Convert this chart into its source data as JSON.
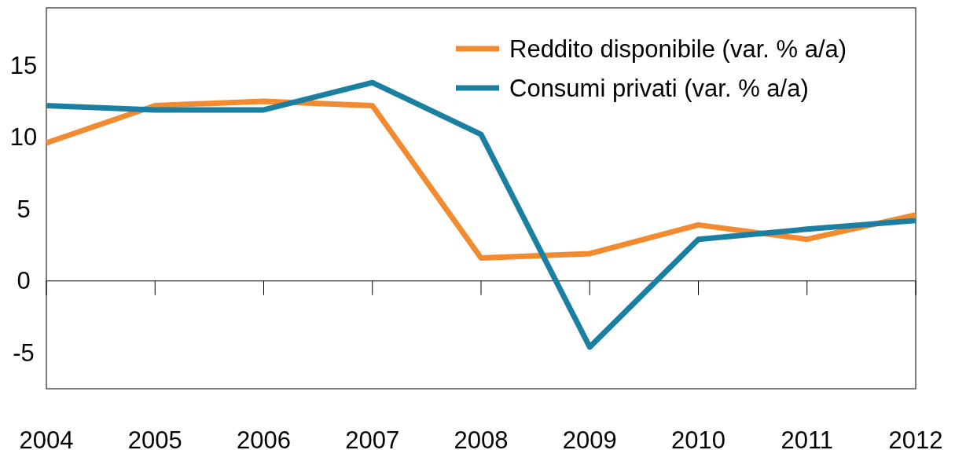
{
  "chart_data": {
    "type": "line",
    "categories": [
      "2004",
      "2005",
      "2006",
      "2007",
      "2008",
      "2009",
      "2010",
      "2011",
      "2012"
    ],
    "series": [
      {
        "name": "Reddito disponibile (var. % a/a)",
        "color": "#f28a30",
        "values": [
          9.6,
          12.2,
          12.5,
          12.2,
          1.6,
          1.9,
          3.9,
          2.9,
          4.6
        ]
      },
      {
        "name": "Consumi privati (var. % a/a)",
        "color": "#1a7fa0",
        "values": [
          12.2,
          11.9,
          11.9,
          13.8,
          10.2,
          -4.6,
          2.9,
          3.6,
          4.2
        ]
      }
    ],
    "ylim": [
      -7.5,
      19
    ],
    "ref_lines": [
      {
        "axis": "y",
        "value": 0,
        "color": "#000000"
      }
    ],
    "yticks": [
      -5,
      0,
      5,
      10,
      15
    ],
    "grid": false,
    "legend": "top right",
    "marker": "none",
    "line_style": "solid"
  }
}
